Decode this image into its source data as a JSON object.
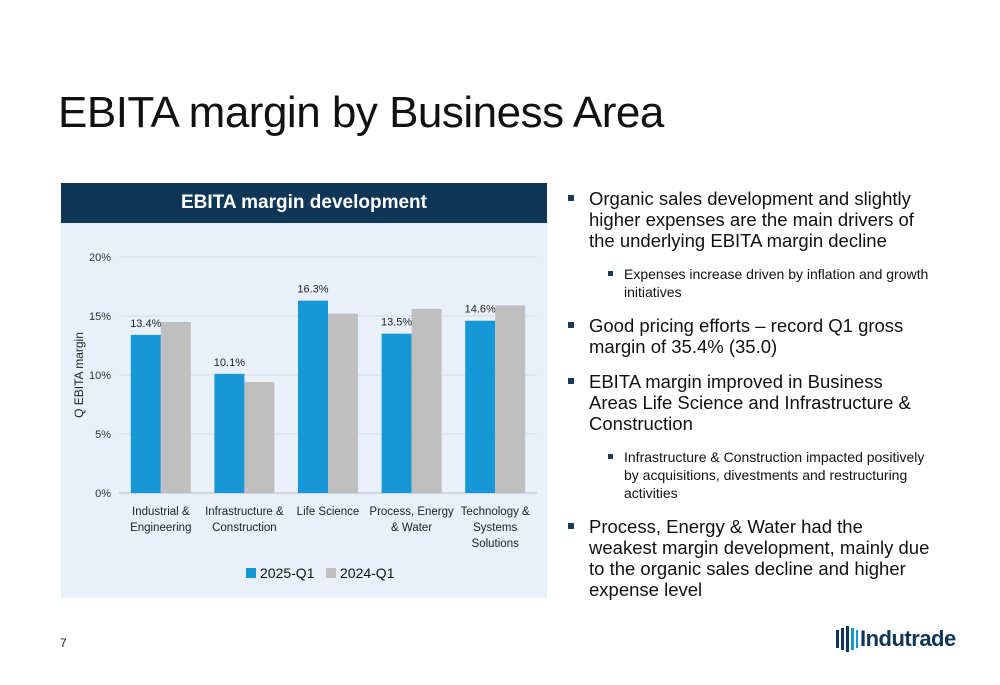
{
  "page": {
    "title": "EBITA margin by Business Area",
    "page_number": "7",
    "logo_text": "Indutrade"
  },
  "colors": {
    "header_bg": "#0f3557",
    "panel_bg": "#e9f0fa",
    "series_2025": "#1697d6",
    "series_2024": "#bfbfbf"
  },
  "chart_data": {
    "type": "bar",
    "title": "EBITA margin development",
    "ylabel": "Q EBITA margin",
    "xlabel": "",
    "ylim": [
      0,
      20
    ],
    "yticks": [
      "0%",
      "5%",
      "10%",
      "15%",
      "20%"
    ],
    "grid": true,
    "legend_position": "bottom",
    "categories": [
      [
        "Industrial &",
        "Engineering"
      ],
      [
        "Infrastructure &",
        "Construction"
      ],
      [
        "Life Science"
      ],
      [
        "Process, Energy",
        "& Water"
      ],
      [
        "Technology &",
        "Systems",
        "Solutions"
      ]
    ],
    "series": [
      {
        "name": "2025-Q1",
        "values": [
          13.4,
          10.1,
          16.3,
          13.5,
          14.6
        ],
        "labels": [
          "13.4%",
          "10.1%",
          "16.3%",
          "13.5%",
          "14.6%"
        ]
      },
      {
        "name": "2024-Q1",
        "values": [
          14.5,
          9.4,
          15.2,
          15.6,
          15.9
        ]
      }
    ]
  },
  "bullets": [
    {
      "level": 1,
      "text": "Organic sales development and slightly higher expenses are the main drivers of the underlying EBITA margin decline"
    },
    {
      "level": 2,
      "text": "Expenses increase driven by inflation and growth initiatives"
    },
    {
      "level": 1,
      "text": "Good pricing efforts – record Q1 gross margin of 35.4% (35.0)"
    },
    {
      "level": 1,
      "text": "EBITA margin improved in Business Areas Life Science and Infrastructure & Construction"
    },
    {
      "level": 2,
      "text": "Infrastructure & Construction impacted positively by acquisitions, divestments and restructuring activities"
    },
    {
      "level": 1,
      "text": "Process, Energy & Water had the weakest margin development, mainly due to the organic sales decline and higher expense level"
    }
  ]
}
